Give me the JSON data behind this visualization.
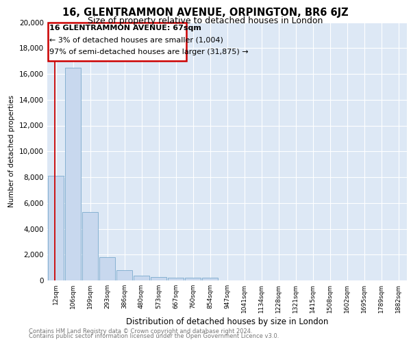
{
  "title": "16, GLENTRAMMON AVENUE, ORPINGTON, BR6 6JZ",
  "subtitle": "Size of property relative to detached houses in London",
  "xlabel": "Distribution of detached houses by size in London",
  "ylabel": "Number of detached properties",
  "footnote1": "Contains HM Land Registry data © Crown copyright and database right 2024.",
  "footnote2": "Contains public sector information licensed under the Open Government Licence v3.0.",
  "bar_color": "#c8d8ee",
  "bar_edge_color": "#7aaacc",
  "background_color": "#dde8f5",
  "annotation_box_color": "#cc0000",
  "annotation_text1": "16 GLENTRAMMON AVENUE: 67sqm",
  "annotation_text2": "← 3% of detached houses are smaller (1,004)",
  "annotation_text3": "97% of semi-detached houses are larger (31,875) →",
  "vline_color": "#cc0000",
  "categories": [
    "12sqm",
    "106sqm",
    "199sqm",
    "293sqm",
    "386sqm",
    "480sqm",
    "573sqm",
    "667sqm",
    "760sqm",
    "854sqm",
    "947sqm",
    "1041sqm",
    "1134sqm",
    "1228sqm",
    "1321sqm",
    "1415sqm",
    "1508sqm",
    "1602sqm",
    "1695sqm",
    "1789sqm",
    "1882sqm"
  ],
  "values": [
    8100,
    16500,
    5300,
    1800,
    800,
    380,
    290,
    200,
    200,
    200,
    0,
    0,
    0,
    0,
    0,
    0,
    0,
    0,
    0,
    0,
    0
  ],
  "ylim": [
    0,
    20000
  ],
  "yticks": [
    0,
    2000,
    4000,
    6000,
    8000,
    10000,
    12000,
    14000,
    16000,
    18000,
    20000
  ]
}
